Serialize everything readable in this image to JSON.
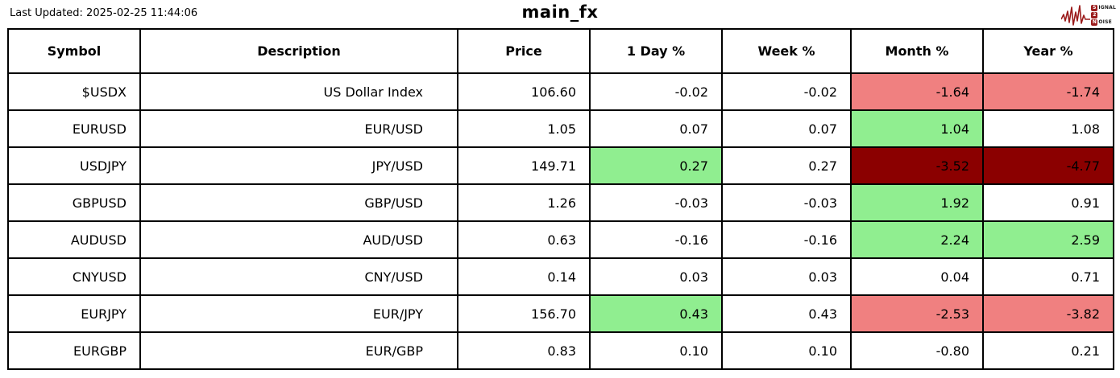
{
  "page": {
    "last_updated": "Last Updated: 2025-02-25 11:44:06",
    "title": "main_fx"
  },
  "logo": {
    "color": "#9b1c1c",
    "lines": [
      {
        "initial": "S",
        "rest": "IGNAL"
      },
      {
        "initial": "2",
        "rest": ""
      },
      {
        "initial": "N",
        "rest": "OISE"
      }
    ]
  },
  "colors": {
    "positive_bg": "#90EE90",
    "negative_bg": "#F08080",
    "strong_negative_bg": "#8B0000",
    "default_bg": "#FFFFFF"
  },
  "table": {
    "columns": [
      "Symbol",
      "Description",
      "Price",
      "1 Day %",
      "Week %",
      "Month %",
      "Year %"
    ],
    "rows": [
      {
        "cells": [
          {
            "text": "$USDX"
          },
          {
            "text": "US Dollar Index"
          },
          {
            "text": "106.60"
          },
          {
            "text": "-0.02"
          },
          {
            "text": "-0.02"
          },
          {
            "text": "-1.64",
            "bg": "negative_bg"
          },
          {
            "text": "-1.74",
            "bg": "negative_bg"
          }
        ]
      },
      {
        "cells": [
          {
            "text": "EURUSD"
          },
          {
            "text": "EUR/USD"
          },
          {
            "text": "1.05"
          },
          {
            "text": "0.07"
          },
          {
            "text": "0.07"
          },
          {
            "text": "1.04",
            "bg": "positive_bg"
          },
          {
            "text": "1.08"
          }
        ]
      },
      {
        "cells": [
          {
            "text": "USDJPY"
          },
          {
            "text": "JPY/USD"
          },
          {
            "text": "149.71"
          },
          {
            "text": "0.27",
            "bg": "positive_bg"
          },
          {
            "text": "0.27"
          },
          {
            "text": "-3.52",
            "bg": "strong_negative_bg"
          },
          {
            "text": "-4.77",
            "bg": "strong_negative_bg"
          }
        ]
      },
      {
        "cells": [
          {
            "text": "GBPUSD"
          },
          {
            "text": "GBP/USD"
          },
          {
            "text": "1.26"
          },
          {
            "text": "-0.03"
          },
          {
            "text": "-0.03"
          },
          {
            "text": "1.92",
            "bg": "positive_bg"
          },
          {
            "text": "0.91"
          }
        ]
      },
      {
        "cells": [
          {
            "text": "AUDUSD"
          },
          {
            "text": "AUD/USD"
          },
          {
            "text": "0.63"
          },
          {
            "text": "-0.16"
          },
          {
            "text": "-0.16"
          },
          {
            "text": "2.24",
            "bg": "positive_bg"
          },
          {
            "text": "2.59",
            "bg": "positive_bg"
          }
        ]
      },
      {
        "cells": [
          {
            "text": "CNYUSD"
          },
          {
            "text": "CNY/USD"
          },
          {
            "text": "0.14"
          },
          {
            "text": "0.03"
          },
          {
            "text": "0.03"
          },
          {
            "text": "0.04"
          },
          {
            "text": "0.71"
          }
        ]
      },
      {
        "cells": [
          {
            "text": "EURJPY"
          },
          {
            "text": "EUR/JPY"
          },
          {
            "text": "156.70"
          },
          {
            "text": "0.43",
            "bg": "positive_bg"
          },
          {
            "text": "0.43"
          },
          {
            "text": "-2.53",
            "bg": "negative_bg"
          },
          {
            "text": "-3.82",
            "bg": "negative_bg"
          }
        ]
      },
      {
        "cells": [
          {
            "text": "EURGBP"
          },
          {
            "text": "EUR/GBP"
          },
          {
            "text": "0.83"
          },
          {
            "text": "0.10"
          },
          {
            "text": "0.10"
          },
          {
            "text": "-0.80"
          },
          {
            "text": "0.21"
          }
        ]
      }
    ]
  }
}
